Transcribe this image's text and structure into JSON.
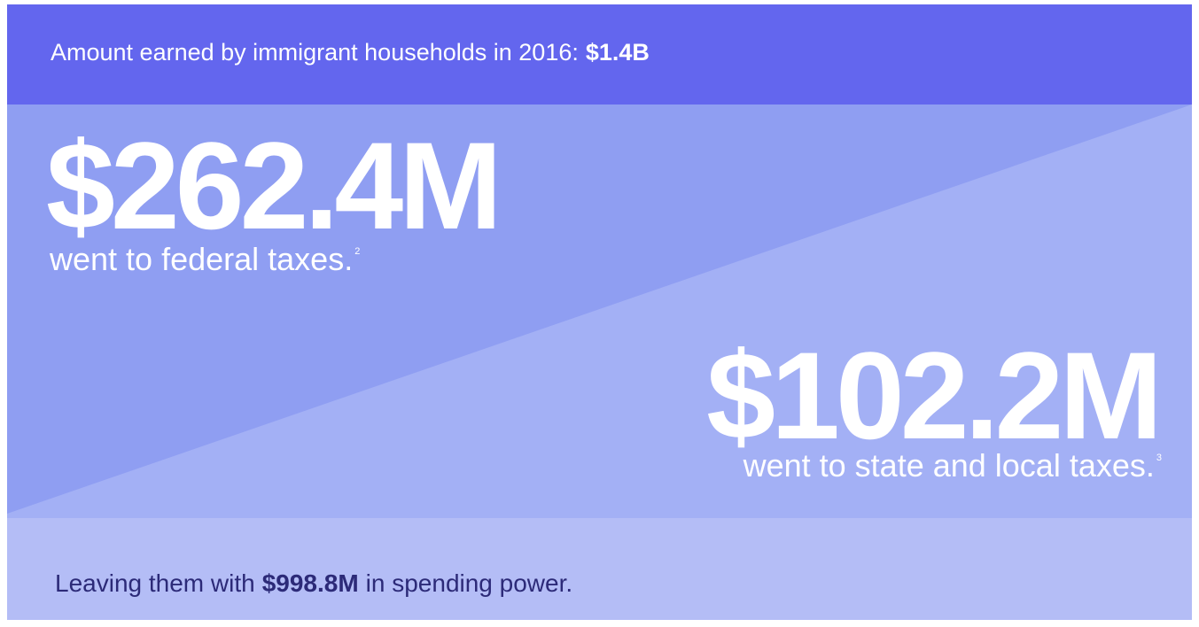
{
  "header": {
    "text": "Amount earned by immigrant households in 2016:",
    "amount": "$1.4B"
  },
  "federal": {
    "amount": "$262.4M",
    "label": "went to federal taxes.",
    "note": "2"
  },
  "state": {
    "amount": "$102.2M",
    "label": "went to state and local taxes.",
    "note": "3"
  },
  "footer": {
    "prefix": "Leaving them with",
    "amount": "$998.8M",
    "suffix": "in spending power."
  }
}
